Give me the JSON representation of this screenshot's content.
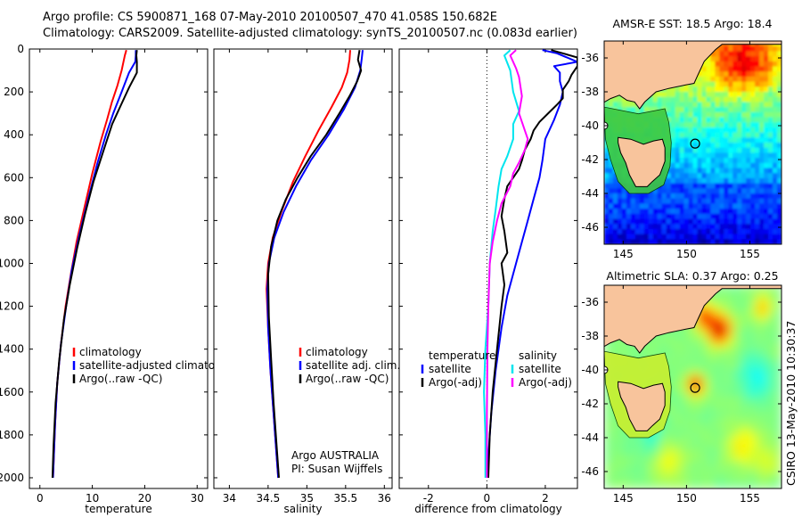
{
  "header": {
    "line1": "Argo profile: CS 5900871_168 07-May-2010 20100507_470 41.058S 150.682E",
    "line2": "Climatology: CARS2009. Satellite-adjusted climatology: synTS_20100507.nc (0.083d earlier)"
  },
  "colors": {
    "climatology": "#ff0000",
    "satellite": "#0000ff",
    "argo": "#000000",
    "sat_salinity": "#00e5ee",
    "argo_salinity": "#ff00ff",
    "land": "#f8c49c"
  },
  "chart_data": [
    {
      "type": "line",
      "id": "temperature",
      "xlabel": "temperature",
      "xlim": [
        -2,
        32
      ],
      "xticks": [
        0,
        10,
        20,
        30
      ],
      "ylim": [
        2050,
        0
      ],
      "yticks": [
        0,
        200,
        400,
        600,
        800,
        1000,
        1200,
        1400,
        1600,
        1800,
        2000
      ],
      "legend": [
        "climatology",
        "satellite-adjusted climatology",
        "Argo(..raw -QC)"
      ],
      "series": [
        {
          "name": "climatology",
          "color": "#ff0000",
          "points": [
            [
              16.5,
              5
            ],
            [
              16.2,
              30
            ],
            [
              15.6,
              100
            ],
            [
              14.8,
              170
            ],
            [
              13.7,
              250
            ],
            [
              12.8,
              330
            ],
            [
              11.6,
              430
            ],
            [
              10.0,
              580
            ],
            [
              8.3,
              760
            ],
            [
              7.0,
              900
            ],
            [
              5.9,
              1050
            ],
            [
              4.9,
              1200
            ],
            [
              4.0,
              1380
            ],
            [
              3.3,
              1560
            ],
            [
              2.9,
              1750
            ],
            [
              2.5,
              2000
            ]
          ]
        },
        {
          "name": "satellite-adjusted climatology",
          "color": "#0000ff",
          "points": [
            [
              18.3,
              5
            ],
            [
              18.3,
              30
            ],
            [
              18.2,
              60
            ],
            [
              17.0,
              110
            ],
            [
              15.6,
              200
            ],
            [
              14.0,
              300
            ],
            [
              12.6,
              400
            ],
            [
              11.0,
              530
            ],
            [
              9.2,
              700
            ],
            [
              7.5,
              870
            ],
            [
              6.1,
              1030
            ],
            [
              5.0,
              1200
            ],
            [
              4.0,
              1380
            ],
            [
              3.3,
              1560
            ],
            [
              2.9,
              1750
            ],
            [
              2.5,
              2000
            ]
          ]
        },
        {
          "name": "Argo(..raw -QC)",
          "color": "#000000",
          "points": [
            [
              18.5,
              5
            ],
            [
              18.4,
              30
            ],
            [
              18.5,
              60
            ],
            [
              18.5,
              110
            ],
            [
              17.0,
              180
            ],
            [
              15.5,
              260
            ],
            [
              13.8,
              350
            ],
            [
              12.2,
              470
            ],
            [
              10.2,
              620
            ],
            [
              8.6,
              770
            ],
            [
              7.1,
              930
            ],
            [
              5.7,
              1100
            ],
            [
              4.6,
              1260
            ],
            [
              3.7,
              1450
            ],
            [
              3.0,
              1650
            ],
            [
              2.6,
              1850
            ],
            [
              2.4,
              2000
            ]
          ]
        }
      ]
    },
    {
      "type": "line",
      "id": "salinity",
      "xlabel": "salinity",
      "xlim": [
        33.8,
        36.1
      ],
      "xticks": [
        34,
        34.5,
        35,
        35.5,
        36
      ],
      "ylim": [
        2050,
        0
      ],
      "yticks": [
        0,
        200,
        400,
        600,
        800,
        1000,
        1200,
        1400,
        1600,
        1800,
        2000
      ],
      "legend": [
        "climatology",
        "satellite adj. clim.",
        "Argo(..raw -QC)"
      ],
      "annotation": [
        "Argo AUSTRALIA",
        "PI: Susan Wijffels"
      ],
      "series": [
        {
          "name": "climatology",
          "color": "#ff0000",
          "points": [
            [
              35.56,
              5
            ],
            [
              35.55,
              50
            ],
            [
              35.52,
              110
            ],
            [
              35.45,
              180
            ],
            [
              35.32,
              270
            ],
            [
              35.15,
              380
            ],
            [
              34.98,
              500
            ],
            [
              34.82,
              620
            ],
            [
              34.67,
              760
            ],
            [
              34.56,
              880
            ],
            [
              34.5,
              1000
            ],
            [
              34.48,
              1120
            ],
            [
              34.5,
              1300
            ],
            [
              34.53,
              1500
            ],
            [
              34.57,
              1700
            ],
            [
              34.6,
              1850
            ],
            [
              34.63,
              2000
            ]
          ]
        },
        {
          "name": "satellite adj. clim.",
          "color": "#0000ff",
          "points": [
            [
              35.72,
              5
            ],
            [
              35.71,
              40
            ],
            [
              35.69,
              100
            ],
            [
              35.62,
              180
            ],
            [
              35.48,
              280
            ],
            [
              35.28,
              400
            ],
            [
              35.05,
              520
            ],
            [
              34.86,
              640
            ],
            [
              34.7,
              760
            ],
            [
              34.58,
              880
            ],
            [
              34.51,
              1000
            ],
            [
              34.49,
              1120
            ],
            [
              34.5,
              1300
            ],
            [
              34.53,
              1500
            ],
            [
              34.57,
              1700
            ],
            [
              34.6,
              1850
            ],
            [
              34.63,
              2000
            ]
          ]
        },
        {
          "name": "Argo(..raw -QC)",
          "color": "#000000",
          "points": [
            [
              35.68,
              5
            ],
            [
              35.66,
              50
            ],
            [
              35.7,
              100
            ],
            [
              35.65,
              150
            ],
            [
              35.55,
              220
            ],
            [
              35.42,
              300
            ],
            [
              35.25,
              400
            ],
            [
              35.05,
              500
            ],
            [
              34.88,
              600
            ],
            [
              34.73,
              700
            ],
            [
              34.62,
              800
            ],
            [
              34.54,
              920
            ],
            [
              34.5,
              1050
            ],
            [
              34.51,
              1250
            ],
            [
              34.54,
              1450
            ],
            [
              34.57,
              1650
            ],
            [
              34.61,
              1850
            ],
            [
              34.64,
              2000
            ]
          ]
        }
      ]
    },
    {
      "type": "line",
      "id": "difference",
      "xlabel": "difference from climatology",
      "xlim": [
        -3,
        3.1
      ],
      "xticks": [
        -2,
        0,
        2
      ],
      "ylim": [
        2050,
        0
      ],
      "yticks": [
        0,
        200,
        400,
        600,
        800,
        1000,
        1200,
        1400,
        1600,
        1800,
        2000
      ],
      "legend_left": [
        "temperature",
        "satellite",
        "Argo(-adj)"
      ],
      "legend_right": [
        "salinity",
        "satellite",
        "Argo(-adj)"
      ],
      "series": [
        {
          "name": "temperature satellite",
          "color": "#0000ff",
          "points": [
            [
              1.9,
              5
            ],
            [
              2.4,
              20
            ],
            [
              3.1,
              60
            ],
            [
              2.3,
              80
            ],
            [
              2.5,
              110
            ],
            [
              2.5,
              150
            ],
            [
              2.6,
              200
            ],
            [
              2.5,
              260
            ],
            [
              2.3,
              330
            ],
            [
              2.0,
              420
            ],
            [
              1.9,
              520
            ],
            [
              1.8,
              600
            ],
            [
              1.6,
              700
            ],
            [
              1.4,
              800
            ],
            [
              1.2,
              900
            ],
            [
              1.0,
              1000
            ],
            [
              0.7,
              1150
            ],
            [
              0.5,
              1300
            ],
            [
              0.3,
              1500
            ],
            [
              0.15,
              1700
            ],
            [
              0.05,
              1900
            ],
            [
              0.0,
              2000
            ]
          ]
        },
        {
          "name": "temperature Argo(-adj)",
          "color": "#000000",
          "points": [
            [
              2.2,
              5
            ],
            [
              2.6,
              20
            ],
            [
              3.1,
              40
            ],
            [
              3.1,
              80
            ],
            [
              2.9,
              120
            ],
            [
              2.8,
              150
            ],
            [
              2.6,
              190
            ],
            [
              2.6,
              230
            ],
            [
              2.4,
              260
            ],
            [
              2.1,
              300
            ],
            [
              1.8,
              340
            ],
            [
              1.6,
              380
            ],
            [
              1.5,
              420
            ],
            [
              1.3,
              470
            ],
            [
              1.2,
              520
            ],
            [
              1.1,
              560
            ],
            [
              0.9,
              600
            ],
            [
              0.7,
              640
            ],
            [
              0.6,
              700
            ],
            [
              0.5,
              780
            ],
            [
              0.6,
              850
            ],
            [
              0.7,
              950
            ],
            [
              0.5,
              1000
            ],
            [
              0.6,
              1100
            ],
            [
              0.5,
              1200
            ],
            [
              0.35,
              1400
            ],
            [
              0.2,
              1600
            ],
            [
              0.1,
              1800
            ],
            [
              0.05,
              2000
            ]
          ]
        },
        {
          "name": "salinity satellite",
          "color": "#00e5ee",
          "points": [
            [
              0.8,
              5
            ],
            [
              0.6,
              30
            ],
            [
              0.8,
              100
            ],
            [
              0.9,
              200
            ],
            [
              1.1,
              290
            ],
            [
              0.9,
              350
            ],
            [
              0.9,
              420
            ],
            [
              0.7,
              500
            ],
            [
              0.5,
              560
            ],
            [
              0.4,
              640
            ],
            [
              0.3,
              750
            ],
            [
              0.2,
              850
            ],
            [
              0.1,
              1000
            ],
            [
              0.05,
              1200
            ],
            [
              -0.05,
              1400
            ],
            [
              -0.1,
              1600
            ],
            [
              -0.05,
              1800
            ],
            [
              -0.05,
              2000
            ]
          ]
        },
        {
          "name": "salinity Argo(-adj)",
          "color": "#ff00ff",
          "points": [
            [
              1.0,
              5
            ],
            [
              0.8,
              30
            ],
            [
              1.0,
              90
            ],
            [
              1.1,
              130
            ],
            [
              1.2,
              220
            ],
            [
              1.1,
              300
            ],
            [
              1.3,
              380
            ],
            [
              1.4,
              420
            ],
            [
              1.3,
              470
            ],
            [
              1.1,
              530
            ],
            [
              0.9,
              580
            ],
            [
              0.8,
              640
            ],
            [
              0.5,
              720
            ],
            [
              0.35,
              800
            ],
            [
              0.2,
              900
            ],
            [
              0.1,
              1000
            ],
            [
              0.05,
              1200
            ],
            [
              0.02,
              1400
            ],
            [
              0.0,
              1700
            ],
            [
              0.0,
              2000
            ]
          ]
        }
      ]
    },
    {
      "type": "heatmap",
      "id": "sst",
      "title": "AMSR-E SST: 18.5 Argo: 18.4",
      "xlim": [
        143.5,
        157.5
      ],
      "ylim": [
        -47,
        -35
      ],
      "xticks": [
        145,
        150,
        155
      ],
      "yticks": [
        -36,
        -38,
        -40,
        -42,
        -44,
        -46
      ],
      "argo_position": {
        "lon": 150.68,
        "lat": -41.06
      }
    },
    {
      "type": "heatmap",
      "id": "sla",
      "title": "Altimetric SLA: 0.37 Argo: 0.25",
      "xlim": [
        143.5,
        157.5
      ],
      "ylim": [
        -47,
        -35
      ],
      "xticks": [
        145,
        150,
        155
      ],
      "yticks": [
        -36,
        -38,
        -40,
        -42,
        -44,
        -46
      ],
      "argo_position": {
        "lon": 150.68,
        "lat": -41.06
      }
    }
  ],
  "side_label": "CSIRO 13-May-2010 10:30:37"
}
